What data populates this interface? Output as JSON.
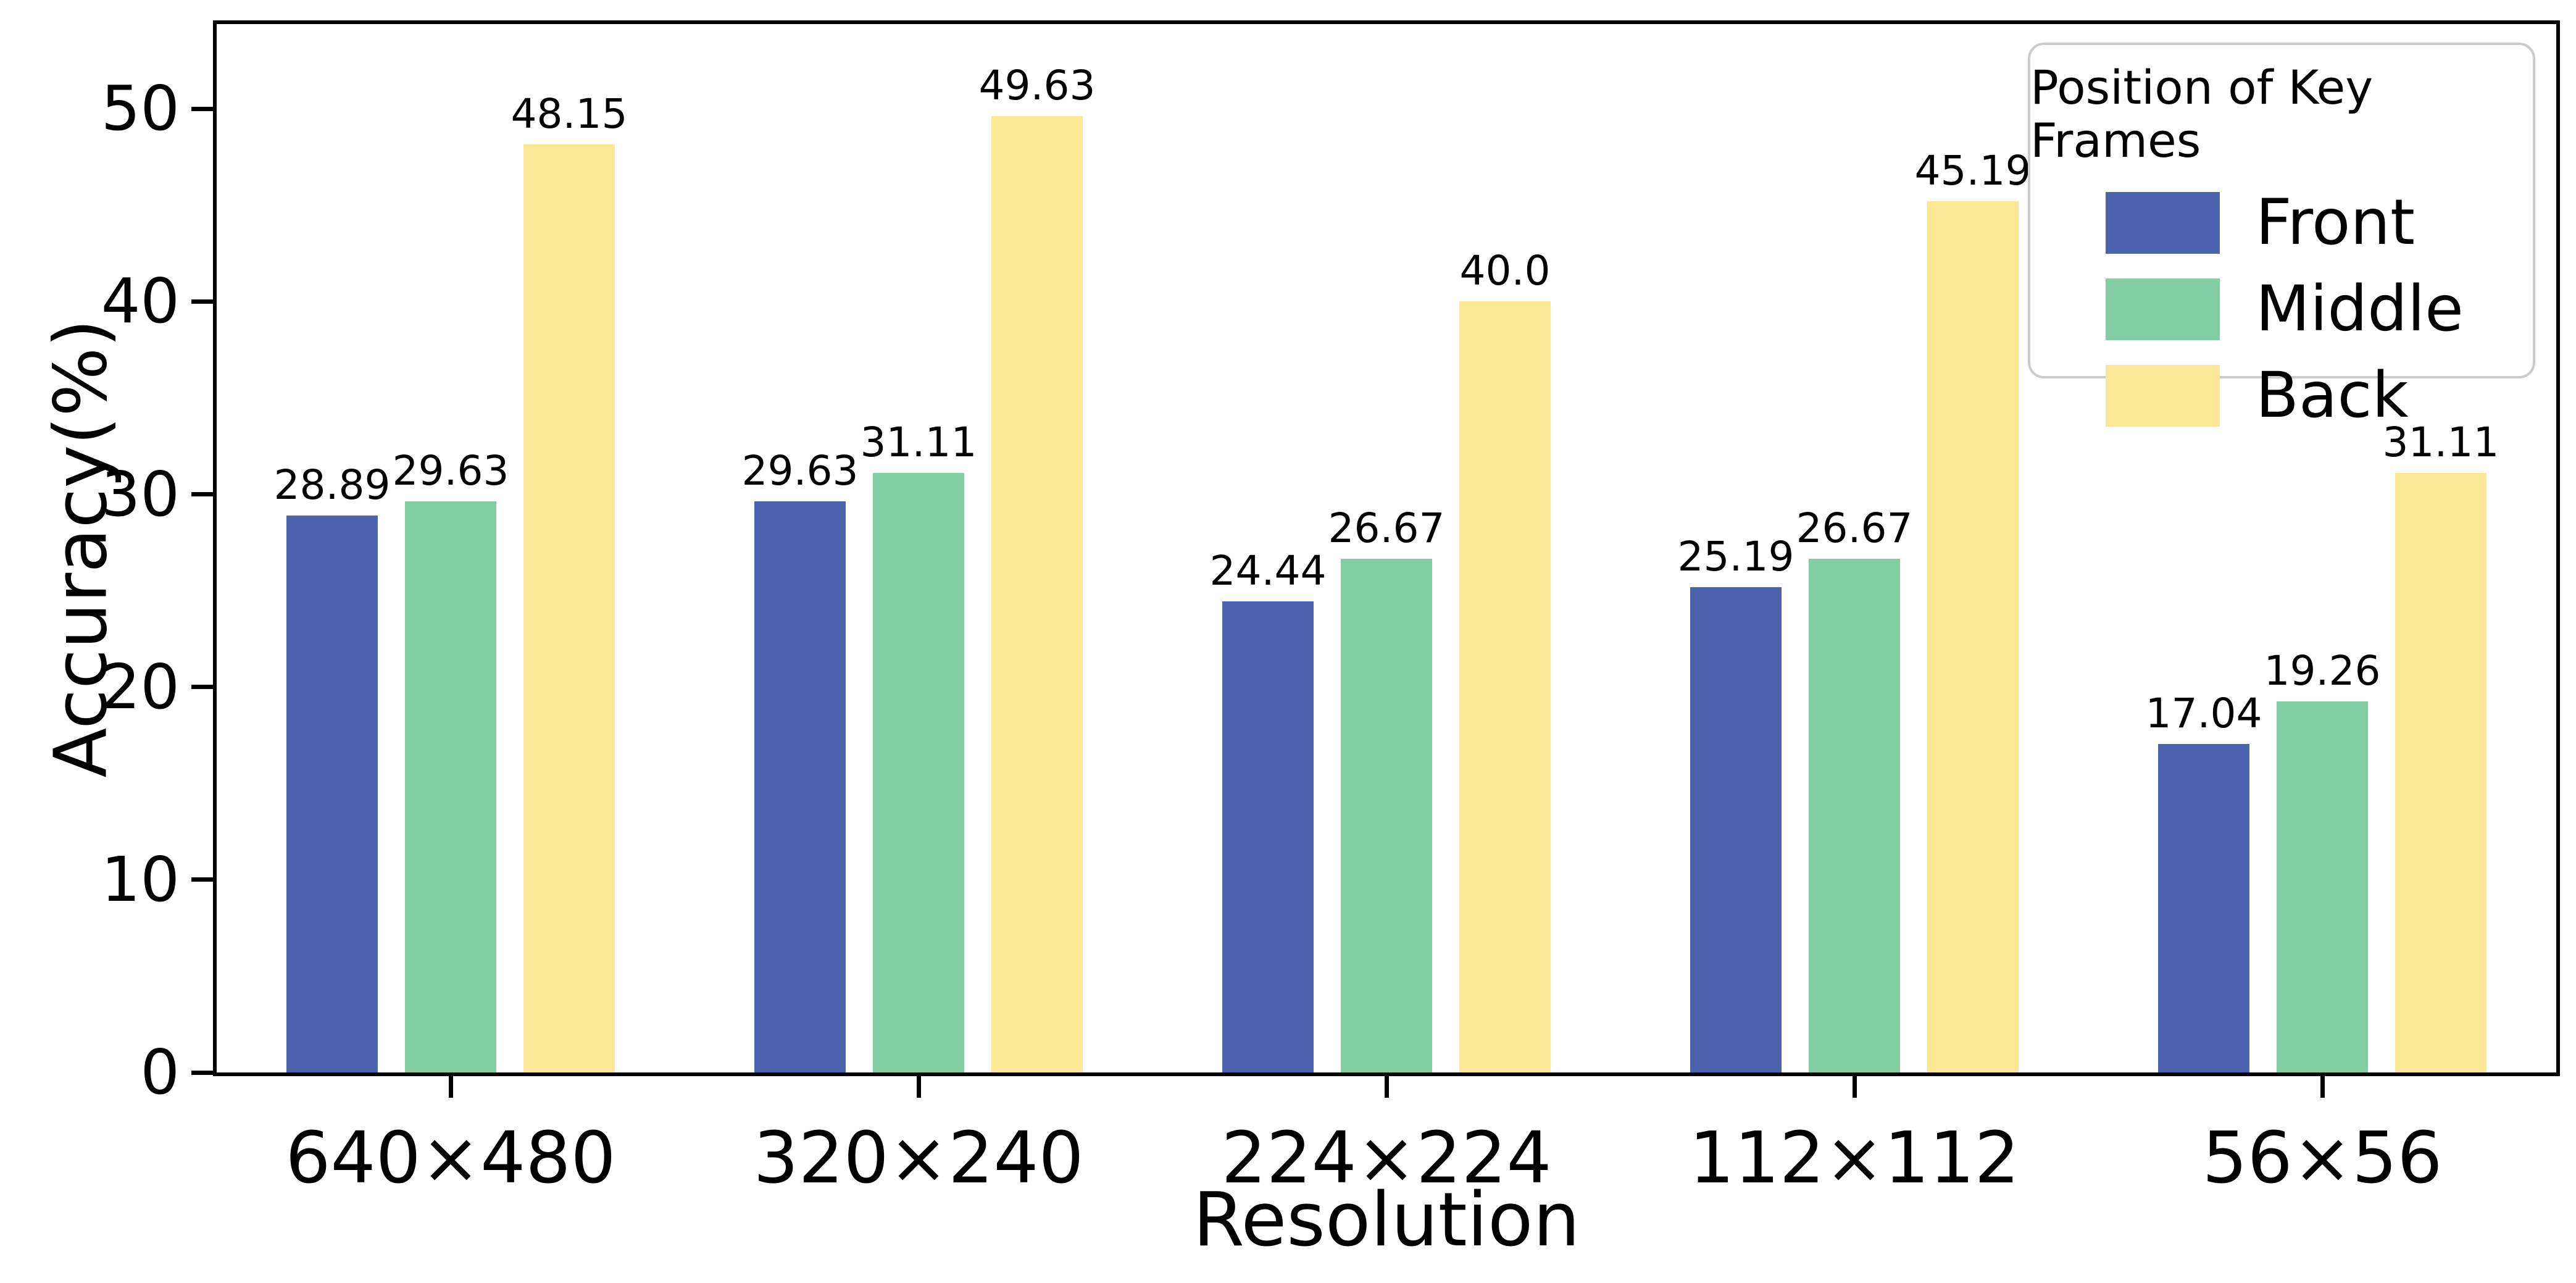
{
  "chart_data": {
    "type": "bar",
    "title": "",
    "xlabel": "Resolution",
    "ylabel": "Accuracy(%)",
    "categories": [
      "640×480",
      "320×240",
      "224×224",
      "112×112",
      "56×56"
    ],
    "series": [
      {
        "name": "Front",
        "color": "#4D62AC",
        "values": [
          28.89,
          29.63,
          24.44,
          25.19,
          17.04
        ],
        "labels": [
          "28.89",
          "29.63",
          "24.44",
          "25.19",
          "17.04"
        ]
      },
      {
        "name": "Middle",
        "color": "#82CEA4",
        "values": [
          29.63,
          31.11,
          26.67,
          26.67,
          19.26
        ],
        "labels": [
          "29.63",
          "31.11",
          "26.67",
          "26.67",
          "19.26"
        ]
      },
      {
        "name": "Back",
        "color": "#FCE796",
        "values": [
          48.15,
          49.63,
          40.0,
          45.19,
          31.11
        ],
        "labels": [
          "48.15",
          "49.63",
          "40.0",
          "45.19",
          "31.11"
        ]
      }
    ],
    "ylim": [
      0,
      54.4
    ],
    "yticks": [
      0,
      10,
      20,
      30,
      40,
      50
    ],
    "grid": false,
    "axis_color": "#000000",
    "legend": {
      "title": "Position of Key Frames",
      "position": "upper right",
      "entries": [
        "Front",
        "Middle",
        "Back"
      ]
    }
  }
}
